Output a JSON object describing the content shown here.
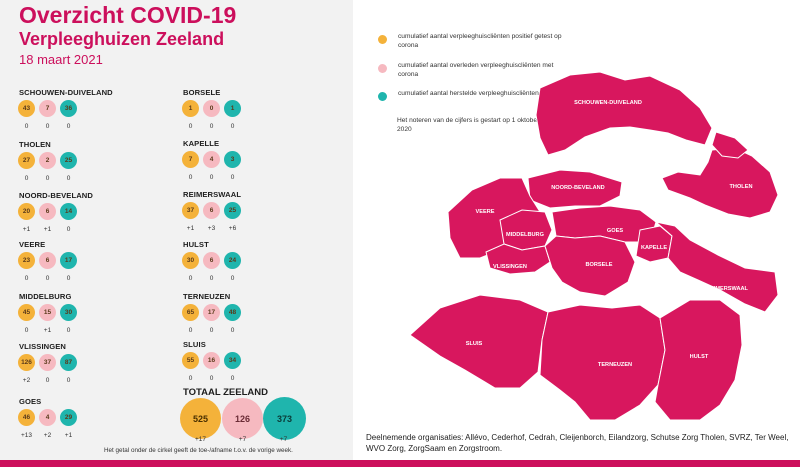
{
  "header": {
    "title": "Overzicht COVID-19",
    "subtitle": "Verpleeghuizen Zeeland",
    "date": "18 maart 2021"
  },
  "colors": {
    "brand": "#cc0f5c",
    "positive": "#f4b23a",
    "deceased": "#f6b9c0",
    "recovered": "#1fb5ad",
    "map_fill": "#d8175e"
  },
  "municipalities": [
    {
      "name": "SCHOUWEN-DUIVELAND",
      "pos": "43",
      "ovl": "7",
      "her": "36",
      "d_pos": "0",
      "d_ovl": "0",
      "d_her": "0"
    },
    {
      "name": "THOLEN",
      "pos": "27",
      "ovl": "2",
      "her": "25",
      "d_pos": "0",
      "d_ovl": "0",
      "d_her": "0"
    },
    {
      "name": "NOORD-BEVELAND",
      "pos": "20",
      "ovl": "6",
      "her": "14",
      "d_pos": "+1",
      "d_ovl": "+1",
      "d_her": "0"
    },
    {
      "name": "VEERE",
      "pos": "23",
      "ovl": "6",
      "her": "17",
      "d_pos": "0",
      "d_ovl": "0",
      "d_her": "0"
    },
    {
      "name": "MIDDELBURG",
      "pos": "45",
      "ovl": "15",
      "her": "30",
      "d_pos": "0",
      "d_ovl": "+1",
      "d_her": "0"
    },
    {
      "name": "VLISSINGEN",
      "pos": "126",
      "ovl": "37",
      "her": "87",
      "d_pos": "+2",
      "d_ovl": "0",
      "d_her": "0"
    },
    {
      "name": "GOES",
      "pos": "46",
      "ovl": "4",
      "her": "29",
      "d_pos": "+13",
      "d_ovl": "+2",
      "d_her": "+1"
    },
    {
      "name": "BORSELE",
      "pos": "1",
      "ovl": "0",
      "her": "1",
      "d_pos": "0",
      "d_ovl": "0",
      "d_her": "0"
    },
    {
      "name": "KAPELLE",
      "pos": "7",
      "ovl": "4",
      "her": "3",
      "d_pos": "0",
      "d_ovl": "0",
      "d_her": "0"
    },
    {
      "name": "REIMERSWAAL",
      "pos": "37",
      "ovl": "6",
      "her": "25",
      "d_pos": "+1",
      "d_ovl": "+3",
      "d_her": "+6"
    },
    {
      "name": "HULST",
      "pos": "30",
      "ovl": "6",
      "her": "24",
      "d_pos": "0",
      "d_ovl": "0",
      "d_her": "0"
    },
    {
      "name": "TERNEUZEN",
      "pos": "65",
      "ovl": "17",
      "her": "48",
      "d_pos": "0",
      "d_ovl": "0",
      "d_her": "0"
    },
    {
      "name": "SLUIS",
      "pos": "55",
      "ovl": "16",
      "her": "34",
      "d_pos": "0",
      "d_ovl": "0",
      "d_her": "0"
    }
  ],
  "total": {
    "label": "TOTAAL ZEELAND",
    "pos": "525",
    "ovl": "126",
    "her": "373",
    "d_pos": "+17",
    "d_ovl": "+7",
    "d_her": "+7"
  },
  "footnote": "Het getal onder de cirkel geeft de toe-/afname t.o.v. de vorige week.",
  "legend": {
    "positive": "cumulatief aantal verpleeghuiscliënten positief getest op corona",
    "deceased": "cumulatief aantal overleden verpleeghuiscliënten met corona",
    "recovered": "cumulatief aantal herstelde verpleeghuiscliënten",
    "note": "Het noteren van de cijfers is gestart op 1 oktober 2020"
  },
  "map_labels": {
    "schouwen": "SCHOUWEN-DUIVELAND",
    "tholen": "THOLEN",
    "noord_beveland": "NOORD-BEVELAND",
    "veere": "VEERE",
    "middelburg": "MIDDELBURG",
    "goes": "GOES",
    "kapelle": "KAPELLE",
    "vlissingen": "VLISSINGEN",
    "borsele": "BORSELE",
    "reimerswaal": "REIMERSWAAL",
    "sluis": "SLUIS",
    "terneuzen": "TERNEUZEN",
    "hulst": "HULST"
  },
  "organisations": "Deelnemende organisaties: Allévo, Cederhof, Cedrah, Cleijenborch, Eilandzorg, Schutse Zorg Tholen, SVRZ, Ter Weel, WVO Zorg, ZorgSaam en Zorgstroom."
}
